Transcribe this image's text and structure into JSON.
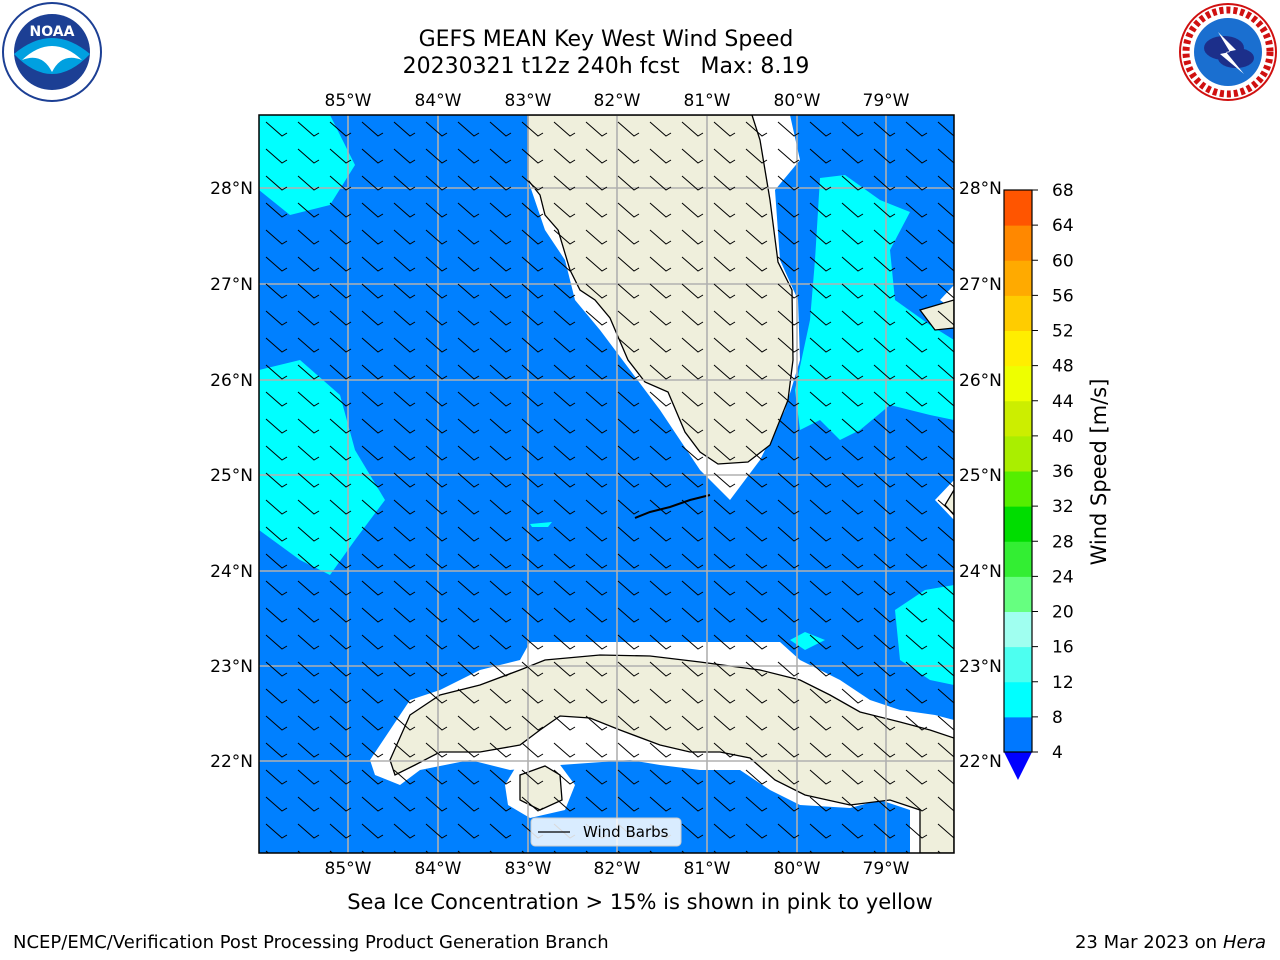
{
  "title": {
    "line1": "GEFS MEAN Key West Wind Speed",
    "line2": "20230321 t12z 240h fcst   Max: 8.19"
  },
  "logos": {
    "left": "noaa-logo",
    "right": "national-weather-service-logo"
  },
  "map": {
    "lon_labels": [
      "85°W",
      "84°W",
      "83°W",
      "82°W",
      "81°W",
      "80°W",
      "79°W"
    ],
    "lat_labels": [
      "28°N",
      "27°N",
      "26°N",
      "25°N",
      "24°N",
      "23°N",
      "22°N"
    ],
    "legend_label": "Wind Barbs",
    "colors": {
      "ocean_base": "#0080ff",
      "ocean_mid": "#00ffff",
      "land": "#efefdc",
      "grid": "#b0b0b0"
    }
  },
  "colorbar": {
    "label": "Wind Speed [m/s]",
    "ticks": [
      "4",
      "8",
      "12",
      "16",
      "20",
      "24",
      "28",
      "32",
      "36",
      "40",
      "44",
      "48",
      "52",
      "56",
      "60",
      "64",
      "68"
    ],
    "colors": [
      "#0078ff",
      "#00ffff",
      "#4dfff0",
      "#a0fff0",
      "#66ff80",
      "#33ee33",
      "#00dd00",
      "#55ee00",
      "#aaee00",
      "#ccee00",
      "#eeff00",
      "#ffee00",
      "#ffcc00",
      "#ffaa00",
      "#ff8800",
      "#ff5500",
      "#ff2200",
      "#ff0000"
    ],
    "under_color": "#0000ff"
  },
  "footer": {
    "note": "Sea Ice Concentration > 15% is shown in pink to yellow",
    "credit": "NCEP/EMC/Verification Post Processing Product Generation Branch",
    "date": "23 Mar 2023 on",
    "machine": "Hera"
  }
}
